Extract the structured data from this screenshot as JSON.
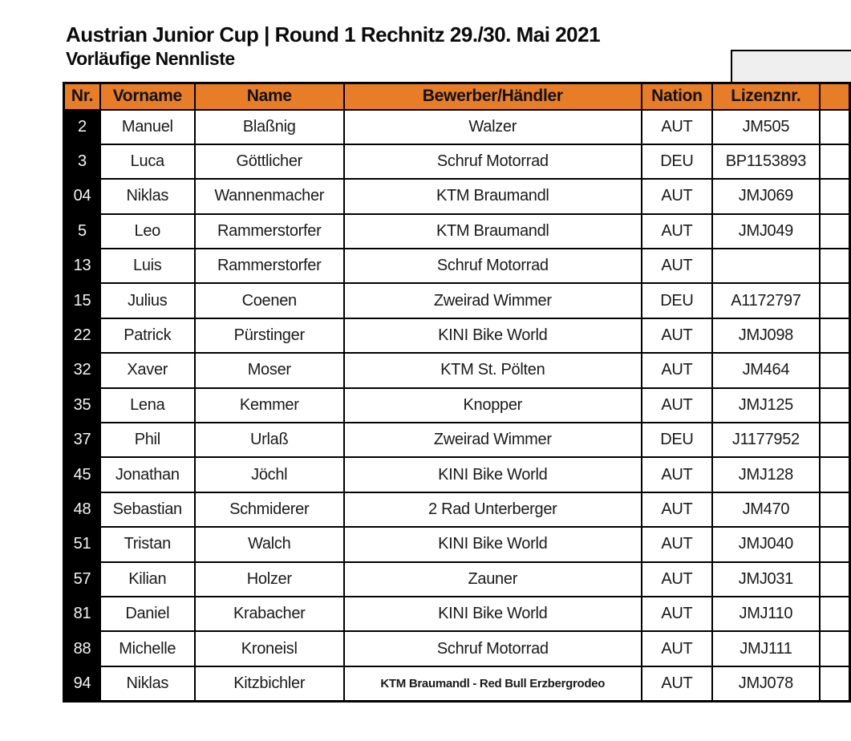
{
  "page": {
    "title": "Austrian Junior Cup | Round 1 Rechnitz 29./30. Mai 2021",
    "subtitle": "Vorläufige Nennliste"
  },
  "colors": {
    "header_bg": "#E87D28",
    "nr_column_bg": "#000000",
    "grid_border": "#000000",
    "note_box_bg": "#EFEFEF",
    "text": "#1A1A1A"
  },
  "table": {
    "columns": [
      "Nr.",
      "Vorname",
      "Name",
      "Bewerber/Händler",
      "Nation",
      "Lizenznr."
    ],
    "rows": [
      {
        "nr": "2",
        "vorname": "Manuel",
        "name": "Blaßnig",
        "bewerber": "Walzer",
        "nation": "AUT",
        "lizenznr": "JM505"
      },
      {
        "nr": "3",
        "vorname": "Luca",
        "name": "Göttlicher",
        "bewerber": "Schruf Motorrad",
        "nation": "DEU",
        "lizenznr": "BP1153893"
      },
      {
        "nr": "04",
        "vorname": "Niklas",
        "name": "Wannenmacher",
        "bewerber": "KTM Braumandl",
        "nation": "AUT",
        "lizenznr": "JMJ069"
      },
      {
        "nr": "5",
        "vorname": "Leo",
        "name": "Rammerstorfer",
        "bewerber": "KTM Braumandl",
        "nation": "AUT",
        "lizenznr": "JMJ049"
      },
      {
        "nr": "13",
        "vorname": "Luis",
        "name": "Rammerstorfer",
        "bewerber": "Schruf Motorrad",
        "nation": "AUT",
        "lizenznr": ""
      },
      {
        "nr": "15",
        "vorname": "Julius",
        "name": "Coenen",
        "bewerber": "Zweirad Wimmer",
        "nation": "DEU",
        "lizenznr": "A1172797"
      },
      {
        "nr": "22",
        "vorname": "Patrick",
        "name": "Pürstinger",
        "bewerber": "KINI Bike World",
        "nation": "AUT",
        "lizenznr": "JMJ098"
      },
      {
        "nr": "32",
        "vorname": "Xaver",
        "name": "Moser",
        "bewerber": "KTM St. Pölten",
        "nation": "AUT",
        "lizenznr": "JM464"
      },
      {
        "nr": "35",
        "vorname": "Lena",
        "name": "Kemmer",
        "bewerber": "Knopper",
        "nation": "AUT",
        "lizenznr": "JMJ125"
      },
      {
        "nr": "37",
        "vorname": "Phil",
        "name": "Urlaß",
        "bewerber": "Zweirad Wimmer",
        "nation": "DEU",
        "lizenznr": "J1177952"
      },
      {
        "nr": "45",
        "vorname": "Jonathan",
        "name": "Jöchl",
        "bewerber": "KINI Bike World",
        "nation": "AUT",
        "lizenznr": "JMJ128"
      },
      {
        "nr": "48",
        "vorname": "Sebastian",
        "name": "Schmiderer",
        "bewerber": "2 Rad Unterberger",
        "nation": "AUT",
        "lizenznr": "JM470"
      },
      {
        "nr": "51",
        "vorname": "Tristan",
        "name": "Walch",
        "bewerber": "KINI Bike World",
        "nation": "AUT",
        "lizenznr": "JMJ040"
      },
      {
        "nr": "57",
        "vorname": "Kilian",
        "name": "Holzer",
        "bewerber": "Zauner",
        "nation": "AUT",
        "lizenznr": "JMJ031"
      },
      {
        "nr": "81",
        "vorname": "Daniel",
        "name": "Krabacher",
        "bewerber": "KINI Bike World",
        "nation": "AUT",
        "lizenznr": "JMJ110"
      },
      {
        "nr": "88",
        "vorname": "Michelle",
        "name": "Kroneisl",
        "bewerber": "Schruf Motorrad",
        "nation": "AUT",
        "lizenznr": "JMJ111"
      },
      {
        "nr": "94",
        "vorname": "Niklas",
        "name": "Kitzbichler",
        "bewerber": "KTM Braumandl - Red Bull Erzbergrodeo",
        "nation": "AUT",
        "lizenznr": "JMJ078"
      }
    ]
  }
}
